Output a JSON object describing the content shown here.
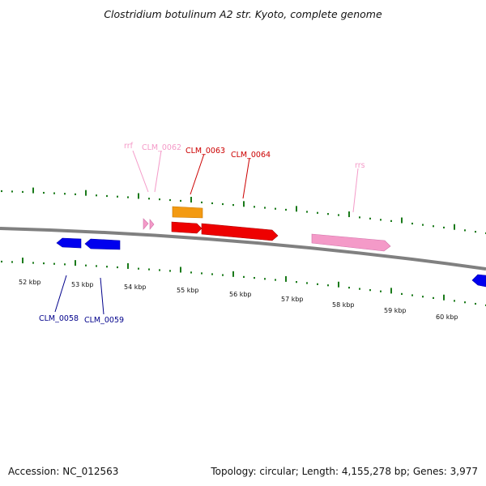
{
  "title": "Clostridium botulinum A2 str. Kyoto, complete genome",
  "footer": {
    "accession": "Accession: NC_012563",
    "summary": "Topology: circular; Length: 4,155,278 bp; Genes: 3,977"
  },
  "colors": {
    "backbone": "#808080",
    "tick": "#1a7a1a",
    "blue": "#0000ee",
    "red": "#ee0000",
    "orange": "#f39a12",
    "pink": "#f49ac8",
    "blue_label": "#00008b",
    "red_label": "#cc0000",
    "pink_label": "#f49ac8"
  },
  "scale": {
    "unit": "kbp",
    "labels": [
      "52 kbp",
      "53 kbp",
      "54 kbp",
      "55 kbp",
      "56 kbp",
      "57 kbp",
      "58 kbp",
      "59 kbp",
      "60 kbp"
    ]
  },
  "features": [
    {
      "label": "rrf",
      "type": "rRNA",
      "strand": "+",
      "color": "pink"
    },
    {
      "label": "CLM_0062",
      "type": "tRNA",
      "strand": "+",
      "color": "pink"
    },
    {
      "label": "CLM_0063",
      "type": "gene",
      "strand": "+",
      "color": "red"
    },
    {
      "label": "CLM_0064",
      "type": "gene",
      "strand": "+",
      "color": "red"
    },
    {
      "label": "rrs",
      "type": "rRNA",
      "strand": "+",
      "color": "pink"
    },
    {
      "label": "CLM_0058",
      "type": "gene",
      "strand": "-",
      "color": "blue"
    },
    {
      "label": "CLM_0059",
      "type": "gene",
      "strand": "-",
      "color": "blue"
    },
    {
      "label": "",
      "type": "misc",
      "strand": "+",
      "color": "orange"
    }
  ]
}
